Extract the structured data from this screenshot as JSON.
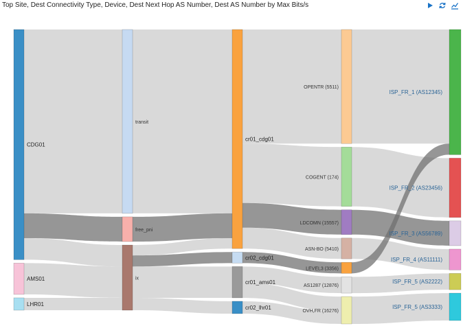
{
  "header": {
    "title": "Top Site, Dest Connectivity Type, Device, Dest Next Hop AS Number, Dest AS Number by Max Bits/s"
  },
  "toolbar": {
    "play_icon": "play-icon",
    "refresh_icon": "refresh-icon",
    "chart_icon": "line-chart-icon",
    "accent": "#1a73c7"
  },
  "chart_data": {
    "type": "sankey",
    "title": "Top Site, Dest Connectivity Type, Device, Dest Next Hop AS Number, Dest AS Number by Max Bits/s",
    "columns": [
      [
        {
          "id": "CDG01",
          "label": "CDG01",
          "color": "#3a8fc6"
        },
        {
          "id": "AMS01",
          "label": "AMS01",
          "color": "#f7c3d8"
        },
        {
          "id": "LHR01",
          "label": "LHR01",
          "color": "#a8dff1"
        }
      ],
      [
        {
          "id": "transit",
          "label": "transit",
          "color": "#c6daf2"
        },
        {
          "id": "free_pni",
          "label": "free_pni",
          "color": "#f8b0ab"
        },
        {
          "id": "ix",
          "label": "ix",
          "color": "#a9786d"
        }
      ],
      [
        {
          "id": "cr01_cdg01",
          "label": "cr01_cdg01",
          "color": "#f9a23f"
        },
        {
          "id": "cr02_cdg01",
          "label": "cr02_cdg01",
          "color": "#c6dcf2"
        },
        {
          "id": "cr01_ams01",
          "label": "cr01_ams01",
          "color": "#9a9a9a"
        },
        {
          "id": "cr02_lhr01",
          "label": "cr02_lhr01",
          "color": "#3a8fc6"
        }
      ],
      [
        {
          "id": "OPENTR",
          "label": "OPENTR (5511)",
          "color": "#fcca93"
        },
        {
          "id": "COGENT",
          "label": "COGENT (174)",
          "color": "#a4dc99"
        },
        {
          "id": "LDCOMN",
          "label": "LDCOMN (15557)",
          "color": "#a07cc2"
        },
        {
          "id": "ASNBO",
          "label": "ASN-BO (5410)",
          "color": "#d5b1a4"
        },
        {
          "id": "LEVEL3",
          "label": "LEVEL3 (3356)",
          "color": "#f9a23f"
        },
        {
          "id": "AS1287",
          "label": "AS1287 (12876)",
          "color": "#e3e3e3"
        },
        {
          "id": "OVH",
          "label": "OVH,FR (16276)",
          "color": "#eeeeae"
        }
      ],
      [
        {
          "id": "ISP1",
          "label": "ISP_FR_1 (AS12345)",
          "color": "#4bb54b"
        },
        {
          "id": "ISP2",
          "label": "ISP_FR_2 (AS23456)",
          "color": "#e45252"
        },
        {
          "id": "ISP3",
          "label": "ISP_FR_3 (AS56789)",
          "color": "#dccce6"
        },
        {
          "id": "ISP4",
          "label": "ISP_FR_4 (AS11111)",
          "color": "#ee96cf"
        },
        {
          "id": "ISP5a",
          "label": "ISP_FR_5 (AS2222)",
          "color": "#cccc55"
        },
        {
          "id": "ISP5b",
          "label": "ISP_FR_5 (AS3333)",
          "color": "#2ec9dd"
        }
      ]
    ],
    "links": [
      {
        "source": "CDG01",
        "target": "transit",
        "value": 282,
        "highlight": false
      },
      {
        "source": "CDG01",
        "target": "free_pni",
        "value": 38,
        "highlight": true
      },
      {
        "source": "CDG01",
        "target": "ix",
        "value": 33,
        "highlight": false
      },
      {
        "source": "AMS01",
        "target": "ix",
        "value": 48,
        "highlight": false
      },
      {
        "source": "LHR01",
        "target": "ix",
        "value": 19,
        "highlight": false
      },
      {
        "source": "transit",
        "target": "cr01_cdg01",
        "value": 282,
        "highlight": false
      },
      {
        "source": "free_pni",
        "target": "cr01_cdg01",
        "value": 38,
        "highlight": true
      },
      {
        "source": "ix",
        "target": "cr01_cdg01",
        "value": 16,
        "highlight": false
      },
      {
        "source": "ix",
        "target": "cr02_cdg01",
        "value": 17,
        "highlight": true
      },
      {
        "source": "ix",
        "target": "cr01_ams01",
        "value": 48,
        "highlight": false
      },
      {
        "source": "ix",
        "target": "cr02_lhr01",
        "value": 19,
        "highlight": false
      },
      {
        "source": "cr01_cdg01",
        "target": "OPENTR",
        "value": 175,
        "highlight": false
      },
      {
        "source": "cr01_cdg01",
        "target": "COGENT",
        "value": 91,
        "highlight": false
      },
      {
        "source": "cr01_cdg01",
        "target": "LDCOMN",
        "value": 38,
        "highlight": true
      },
      {
        "source": "cr01_cdg01",
        "target": "ASNBO",
        "value": 32,
        "highlight": false
      },
      {
        "source": "cr02_cdg01",
        "target": "LEVEL3",
        "value": 17,
        "highlight": true
      },
      {
        "source": "cr01_ams01",
        "target": "AS1287",
        "value": 25,
        "highlight": false
      },
      {
        "source": "cr01_ams01",
        "target": "OVH",
        "value": 23,
        "highlight": false
      },
      {
        "source": "cr02_lhr01",
        "target": "OVH",
        "value": 19,
        "highlight": false
      },
      {
        "source": "OPENTR",
        "target": "ISP1",
        "value": 175,
        "highlight": false
      },
      {
        "source": "COGENT",
        "target": "ISP2",
        "value": 91,
        "highlight": false
      },
      {
        "source": "LDCOMN",
        "target": "ISP3",
        "value": 38,
        "highlight": true
      },
      {
        "source": "ASNBO",
        "target": "ISP4",
        "value": 32,
        "highlight": false
      },
      {
        "source": "LEVEL3",
        "target": "ISP1",
        "value": 17,
        "highlight": true
      },
      {
        "source": "AS1287",
        "target": "ISP5a",
        "value": 25,
        "highlight": false
      },
      {
        "source": "OVH",
        "target": "ISP5b",
        "value": 42,
        "highlight": false
      }
    ]
  }
}
